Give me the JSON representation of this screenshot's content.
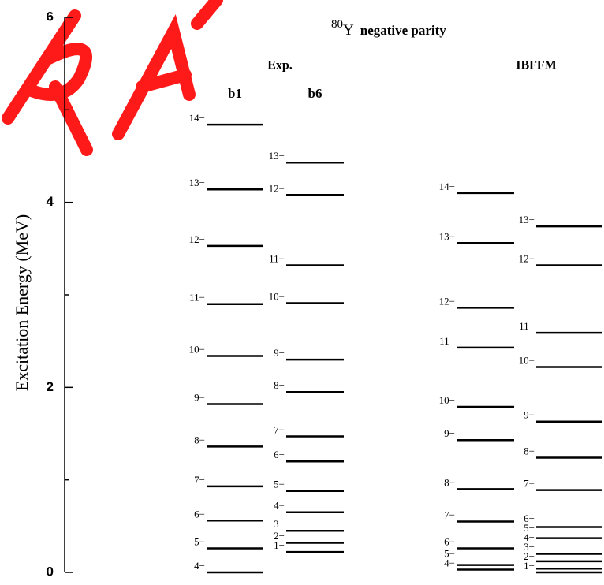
{
  "chart_data": {
    "type": "level_scheme",
    "title": {
      "mass": "80",
      "element": "Y",
      "text": "negative parity"
    },
    "ylabel": "Excitation Energy (MeV)",
    "ylim": [
      0,
      6
    ],
    "yticks": [
      0,
      2,
      4,
      6
    ],
    "yminorticks": [
      1,
      3,
      5
    ],
    "color": "#000000",
    "groups": [
      {
        "name": "Exp.",
        "series": [
          {
            "name": "b1",
            "labels": [
              "4−",
              "5−",
              "6−",
              "7−",
              "8−",
              "9−",
              "10−",
              "11−",
              "12−",
              "13−",
              "14−"
            ],
            "values": [
              0,
              0.26,
              0.56,
              0.93,
              1.36,
              1.82,
              2.34,
              2.9,
              3.53,
              4.14,
              4.84
            ]
          },
          {
            "name": "b6",
            "labels": [
              "1−",
              "2−",
              "3−",
              "4−",
              "5−",
              "6−",
              "7−",
              "8−",
              "9−",
              "10−",
              "11−",
              "12−",
              "13−"
            ],
            "values": [
              0.22,
              0.32,
              0.45,
              0.65,
              0.88,
              1.2,
              1.47,
              1.95,
              2.3,
              2.91,
              3.32,
              4.08,
              4.43
            ]
          }
        ]
      },
      {
        "name": "IBFFM",
        "series": [
          {
            "labels": [
              "4−",
              "5−",
              "6−",
              "7−",
              "8−",
              "9−",
              "10−",
              "11−",
              "12−",
              "13−",
              "14−"
            ],
            "values": [
              0.03,
              0.08,
              0.26,
              0.55,
              0.9,
              1.43,
              1.79,
              2.43,
              2.86,
              3.56,
              4.1
            ]
          },
          {
            "labels": [
              "1−",
              "2−",
              "3−",
              "4−",
              "5−",
              "6−",
              "7−",
              "8−",
              "9−",
              "10−",
              "11−",
              "12−",
              "13−"
            ],
            "values": [
              0,
              0.04,
              0.12,
              0.2,
              0.37,
              0.49,
              0.89,
              1.24,
              1.63,
              2.22,
              2.59,
              3.32,
              3.74
            ]
          }
        ]
      }
    ]
  }
}
